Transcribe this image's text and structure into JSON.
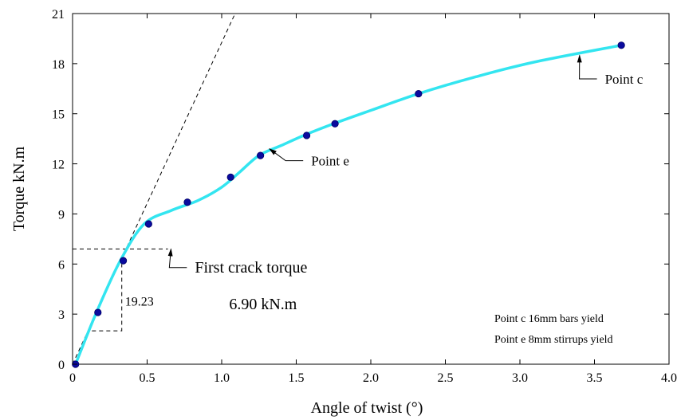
{
  "chart_data": {
    "type": "line",
    "xlabel": "Angle of twist (°)",
    "ylabel": "Torque kN.m",
    "xlim": [
      0,
      4.0
    ],
    "ylim": [
      0,
      21
    ],
    "xticks": [
      "0",
      "0.5",
      "1.0",
      "1.5",
      "2.0",
      "2.5",
      "3.0",
      "3.5",
      "4.0"
    ],
    "xtick_values": [
      0,
      0.5,
      1.0,
      1.5,
      2.0,
      2.5,
      3.0,
      3.5,
      4.0
    ],
    "yticks": [
      "0",
      "3",
      "6",
      "9",
      "12",
      "15",
      "18",
      "21"
    ],
    "ytick_values": [
      0,
      3,
      6,
      9,
      12,
      15,
      18,
      21
    ],
    "grid": false,
    "series": [
      {
        "color": "#33e5f0",
        "marker_color": "#0a0a9e",
        "x": [
          0.02,
          0.16,
          0.32,
          0.48,
          0.66,
          0.84,
          1.0,
          1.12,
          1.25,
          1.4,
          1.55,
          1.75,
          2.0,
          2.32,
          2.7,
          3.1,
          3.68
        ],
        "y": [
          0.0,
          3.1,
          6.2,
          8.4,
          9.2,
          9.8,
          10.6,
          11.5,
          12.5,
          13.1,
          13.7,
          14.4,
          15.2,
          16.2,
          17.2,
          18.1,
          19.1
        ]
      }
    ],
    "markers": {
      "x": [
        0.02,
        0.17,
        0.34,
        0.51,
        0.77,
        1.06,
        1.26,
        1.57,
        1.76,
        2.32,
        3.68
      ],
      "y": [
        0.0,
        3.1,
        6.2,
        8.4,
        9.7,
        11.2,
        12.5,
        13.7,
        14.4,
        16.2,
        19.1
      ]
    },
    "tangent_line": {
      "x": [
        0.0,
        1.09
      ],
      "y": [
        0.0,
        21.0
      ]
    },
    "crack_line": {
      "x": [
        0.0,
        0.64
      ],
      "y": 6.9
    },
    "slope_triangle": {
      "x1": 0.13,
      "x2": 0.33,
      "y1": 2.0,
      "y2": 6.0,
      "label": "19.23"
    },
    "annotations": [
      {
        "text": "First crack torque",
        "tip_x": 0.66,
        "tip_y": 6.9,
        "x": 0.82,
        "y": 5.5,
        "size": "big"
      },
      {
        "text": "6.90 kN.m",
        "x": 1.05,
        "y": 3.3,
        "size": "big"
      },
      {
        "text": "Point e",
        "tip_x": 1.32,
        "tip_y": 12.9,
        "x": 1.6,
        "y": 11.9,
        "size": "mid"
      },
      {
        "text": "Point c",
        "tip_x": 3.4,
        "tip_y": 18.5,
        "x": 3.57,
        "y": 16.8,
        "size": "mid"
      }
    ],
    "notes": [
      "Point c  16mm bars yield",
      "Point e  8mm stirrups yield"
    ]
  }
}
